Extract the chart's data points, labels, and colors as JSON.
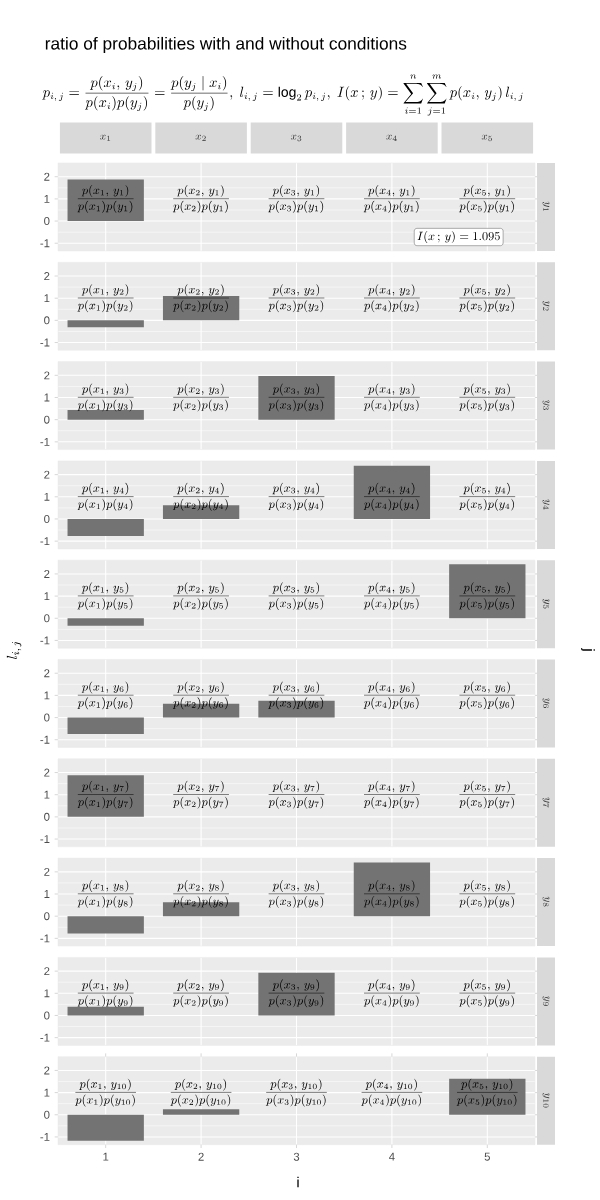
{
  "chart_data": [
    {
      "type": "other",
      "title": "ratio of probabilities with and without conditions",
      "subtitle": "p_{i,\\,j} = \\frac{p(x_{i},\\, y_{j})}{p(x_{i})p(y_{j})} = \\frac{p(y_{j}\\mid x_{i})}{p(y_{j})},\\ l_{i,\\,j} = \\log_{2} p_{i,\\,j},\\ I(x\\,;\\,y) = \\sum_{i=1}^{n}\\sum_{j=1}^{m} p(x_{i},\\, y_{j})\\, l_{i,\\,j}",
      "xlabel": "i",
      "ylabel": "l_{i,\\,j}",
      "y2label": "j"
    },
    {
      "type": "bar",
      "categories": [
        "1",
        "2",
        "3",
        "4",
        "5"
      ],
      "values": [
        1.88,
        null,
        null,
        null,
        null
      ],
      "color": "#737373",
      "ylim": [
        -1.35,
        2.62
      ],
      "yticks": [
        -1,
        0,
        1,
        2
      ],
      "grid": true,
      "tick_labels": "y",
      "y2label": "y_{1}",
      "annotations": [
        "\\frac{p(x_{1},\\, y_{1})}{p(x_{1})p(y_{1})}",
        "\\frac{p(x_{2},\\, y_{1})}{p(x_{2})p(y_{1})}",
        "\\frac{p(x_{3},\\, y_{1})}{p(x_{3})p(y_{1})}",
        "\\frac{p(x_{4},\\, y_{1})}{p(x_{4})p(y_{1})}",
        "\\frac{p(x_{5},\\, y_{1})}{p(x_{5})p(y_{1})}",
        "I(x\\,;\\,y) = 1.095",
        "x_{1}",
        "x_{2}",
        "x_{3}",
        "x_{4}",
        "x_{5}"
      ]
    },
    {
      "type": "bar",
      "categories": [
        "1",
        "2",
        "3",
        "4",
        "5"
      ],
      "values": [
        -0.31,
        1.1,
        null,
        null,
        null
      ],
      "color": "#737373",
      "ylim": [
        -1.35,
        2.62
      ],
      "yticks": [
        -1,
        0,
        1,
        2
      ],
      "grid": true,
      "tick_labels": "y",
      "y2label": "y_{2}",
      "annotations": [
        "\\frac{p(x_{1},\\, y_{2})}{p(x_{1})p(y_{2})}",
        "\\frac{p(x_{2},\\, y_{2})}{p(x_{2})p(y_{2})}",
        "\\frac{p(x_{3},\\, y_{2})}{p(x_{3})p(y_{2})}",
        "\\frac{p(x_{4},\\, y_{2})}{p(x_{4})p(y_{2})}",
        "\\frac{p(x_{5},\\, y_{2})}{p(x_{5})p(y_{2})}"
      ]
    },
    {
      "type": "bar",
      "categories": [
        "1",
        "2",
        "3",
        "4",
        "5"
      ],
      "values": [
        0.44,
        null,
        1.97,
        null,
        null
      ],
      "color": "#737373",
      "ylim": [
        -1.35,
        2.62
      ],
      "yticks": [
        -1,
        0,
        1,
        2
      ],
      "grid": true,
      "tick_labels": "y",
      "y2label": "y_{3}",
      "annotations": [
        "\\frac{p(x_{1},\\, y_{3})}{p(x_{1})p(y_{3})}",
        "\\frac{p(x_{2},\\, y_{3})}{p(x_{2})p(y_{3})}",
        "\\frac{p(x_{3},\\, y_{3})}{p(x_{3})p(y_{3})}",
        "\\frac{p(x_{4},\\, y_{3})}{p(x_{4})p(y_{3})}",
        "\\frac{p(x_{5},\\, y_{3})}{p(x_{5})p(y_{3})}"
      ]
    },
    {
      "type": "bar",
      "categories": [
        "1",
        "2",
        "3",
        "4",
        "5"
      ],
      "values": [
        -0.77,
        0.62,
        null,
        2.4,
        null
      ],
      "color": "#737373",
      "ylim": [
        -1.35,
        2.62
      ],
      "yticks": [
        -1,
        0,
        1,
        2
      ],
      "grid": true,
      "tick_labels": "y",
      "y2label": "y_{4}",
      "annotations": [
        "\\frac{p(x_{1},\\, y_{4})}{p(x_{1})p(y_{4})}",
        "\\frac{p(x_{2},\\, y_{4})}{p(x_{2})p(y_{4})}",
        "\\frac{p(x_{3},\\, y_{4})}{p(x_{3})p(y_{4})}",
        "\\frac{p(x_{4},\\, y_{4})}{p(x_{4})p(y_{4})}",
        "\\frac{p(x_{5},\\, y_{4})}{p(x_{5})p(y_{4})}"
      ]
    },
    {
      "type": "bar",
      "categories": [
        "1",
        "2",
        "3",
        "4",
        "5"
      ],
      "values": [
        -0.34,
        null,
        null,
        null,
        2.44
      ],
      "color": "#737373",
      "ylim": [
        -1.35,
        2.62
      ],
      "yticks": [
        -1,
        0,
        1,
        2
      ],
      "grid": true,
      "tick_labels": "y",
      "y2label": "y_{5}",
      "annotations": [
        "\\frac{p(x_{1},\\, y_{5})}{p(x_{1})p(y_{5})}",
        "\\frac{p(x_{2},\\, y_{5})}{p(x_{2})p(y_{5})}",
        "\\frac{p(x_{3},\\, y_{5})}{p(x_{3})p(y_{5})}",
        "\\frac{p(x_{4},\\, y_{5})}{p(x_{4})p(y_{5})}",
        "\\frac{p(x_{5},\\, y_{5})}{p(x_{5})p(y_{5})}"
      ]
    },
    {
      "type": "bar",
      "categories": [
        "1",
        "2",
        "3",
        "4",
        "5"
      ],
      "values": [
        -0.74,
        0.62,
        0.76,
        null,
        null
      ],
      "color": "#737373",
      "ylim": [
        -1.35,
        2.62
      ],
      "yticks": [
        -1,
        0,
        1,
        2
      ],
      "grid": true,
      "tick_labels": "y",
      "y2label": "y_{6}",
      "annotations": [
        "\\frac{p(x_{1},\\, y_{6})}{p(x_{1})p(y_{6})}",
        "\\frac{p(x_{2},\\, y_{6})}{p(x_{2})p(y_{6})}",
        "\\frac{p(x_{3},\\, y_{6})}{p(x_{3})p(y_{6})}",
        "\\frac{p(x_{4},\\, y_{6})}{p(x_{4})p(y_{6})}",
        "\\frac{p(x_{5},\\, y_{6})}{p(x_{5})p(y_{6})}"
      ]
    },
    {
      "type": "bar",
      "categories": [
        "1",
        "2",
        "3",
        "4",
        "5"
      ],
      "values": [
        1.88,
        null,
        null,
        null,
        null
      ],
      "color": "#737373",
      "ylim": [
        -1.35,
        2.62
      ],
      "yticks": [
        -1,
        0,
        1,
        2
      ],
      "grid": true,
      "tick_labels": "y",
      "y2label": "y_{7}",
      "annotations": [
        "\\frac{p(x_{1},\\, y_{7})}{p(x_{1})p(y_{7})}",
        "\\frac{p(x_{2},\\, y_{7})}{p(x_{2})p(y_{7})}",
        "\\frac{p(x_{3},\\, y_{7})}{p(x_{3})p(y_{7})}",
        "\\frac{p(x_{4},\\, y_{7})}{p(x_{4})p(y_{7})}",
        "\\frac{p(x_{5},\\, y_{7})}{p(x_{5})p(y_{7})}"
      ]
    },
    {
      "type": "bar",
      "categories": [
        "1",
        "2",
        "3",
        "4",
        "5"
      ],
      "values": [
        -0.78,
        0.63,
        null,
        2.42,
        null
      ],
      "color": "#737373",
      "ylim": [
        -1.35,
        2.62
      ],
      "yticks": [
        -1,
        0,
        1,
        2
      ],
      "grid": true,
      "tick_labels": "y",
      "y2label": "y_{8}",
      "annotations": [
        "\\frac{p(x_{1},\\, y_{8})}{p(x_{1})p(y_{8})}",
        "\\frac{p(x_{2},\\, y_{8})}{p(x_{2})p(y_{8})}",
        "\\frac{p(x_{3},\\, y_{8})}{p(x_{3})p(y_{8})}",
        "\\frac{p(x_{4},\\, y_{8})}{p(x_{4})p(y_{8})}",
        "\\frac{p(x_{5},\\, y_{8})}{p(x_{5})p(y_{8})}"
      ]
    },
    {
      "type": "bar",
      "categories": [
        "1",
        "2",
        "3",
        "4",
        "5"
      ],
      "values": [
        0.39,
        null,
        1.93,
        null,
        null
      ],
      "color": "#737373",
      "ylim": [
        -1.35,
        2.62
      ],
      "yticks": [
        -1,
        0,
        1,
        2
      ],
      "grid": true,
      "tick_labels": "y",
      "y2label": "y_{9}",
      "annotations": [
        "\\frac{p(x_{1},\\, y_{9})}{p(x_{1})p(y_{9})}",
        "\\frac{p(x_{2},\\, y_{9})}{p(x_{2})p(y_{9})}",
        "\\frac{p(x_{3},\\, y_{9})}{p(x_{3})p(y_{9})}",
        "\\frac{p(x_{4},\\, y_{9})}{p(x_{4})p(y_{9})}",
        "\\frac{p(x_{5},\\, y_{9})}{p(x_{5})p(y_{9})}"
      ]
    },
    {
      "type": "bar",
      "categories": [
        "1",
        "2",
        "3",
        "4",
        "5"
      ],
      "values": [
        -1.17,
        0.25,
        null,
        null,
        1.63
      ],
      "color": "#737373",
      "ylim": [
        -1.35,
        2.62
      ],
      "yticks": [
        -1,
        0,
        1,
        2
      ],
      "grid": true,
      "y2label": "y_{10}",
      "annotations": [
        "\\frac{p(x_{1},\\, y_{10})}{p(x_{1})p(y_{10})}",
        "\\frac{p(x_{2},\\, y_{10})}{p(x_{2})p(y_{10})}",
        "\\frac{p(x_{3},\\, y_{10})}{p(x_{3})p(y_{10})}",
        "\\frac{p(x_{4},\\, y_{10})}{p(x_{4})p(y_{10})}",
        "\\frac{p(x_{5},\\, y_{10})}{p(x_{5})p(y_{10})}"
      ]
    }
  ]
}
